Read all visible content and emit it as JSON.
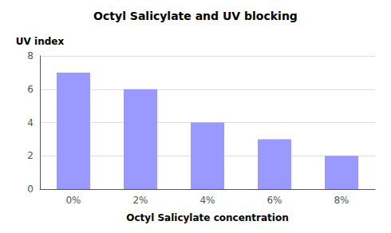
{
  "chart_data": {
    "type": "bar",
    "title": "Octyl Salicylate and UV blocking",
    "xlabel": "Octyl Salicylate concentration",
    "ylabel": "UV index",
    "categories": [
      "0%",
      "2%",
      "4%",
      "6%",
      "8%"
    ],
    "values": [
      7,
      6,
      4,
      3,
      2
    ],
    "color": "#9999ff",
    "ylim": [
      0,
      8
    ],
    "yticks": [
      0,
      2,
      4,
      6,
      8
    ],
    "grid": true
  }
}
